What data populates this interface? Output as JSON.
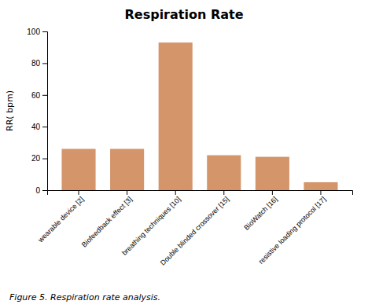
{
  "chart_data": {
    "type": "bar",
    "title": "Respiration Rate",
    "y_label": "RR( bpm)",
    "caption": "Figure 5. Respiration rate analysis.",
    "categories": [
      "wearable device [2]",
      "Biofeedback effect [3]",
      "breathing techniques [10]",
      "Double blinded crossover [15]",
      "BioWatch [16]",
      "resistive loading protocol [17]"
    ],
    "values": [
      26,
      26,
      93,
      22,
      21,
      5
    ],
    "color": "#D4956A",
    "ylim": [
      0,
      100
    ],
    "yticks": [
      0,
      20,
      40,
      60,
      80,
      100
    ],
    "grid": false
  }
}
